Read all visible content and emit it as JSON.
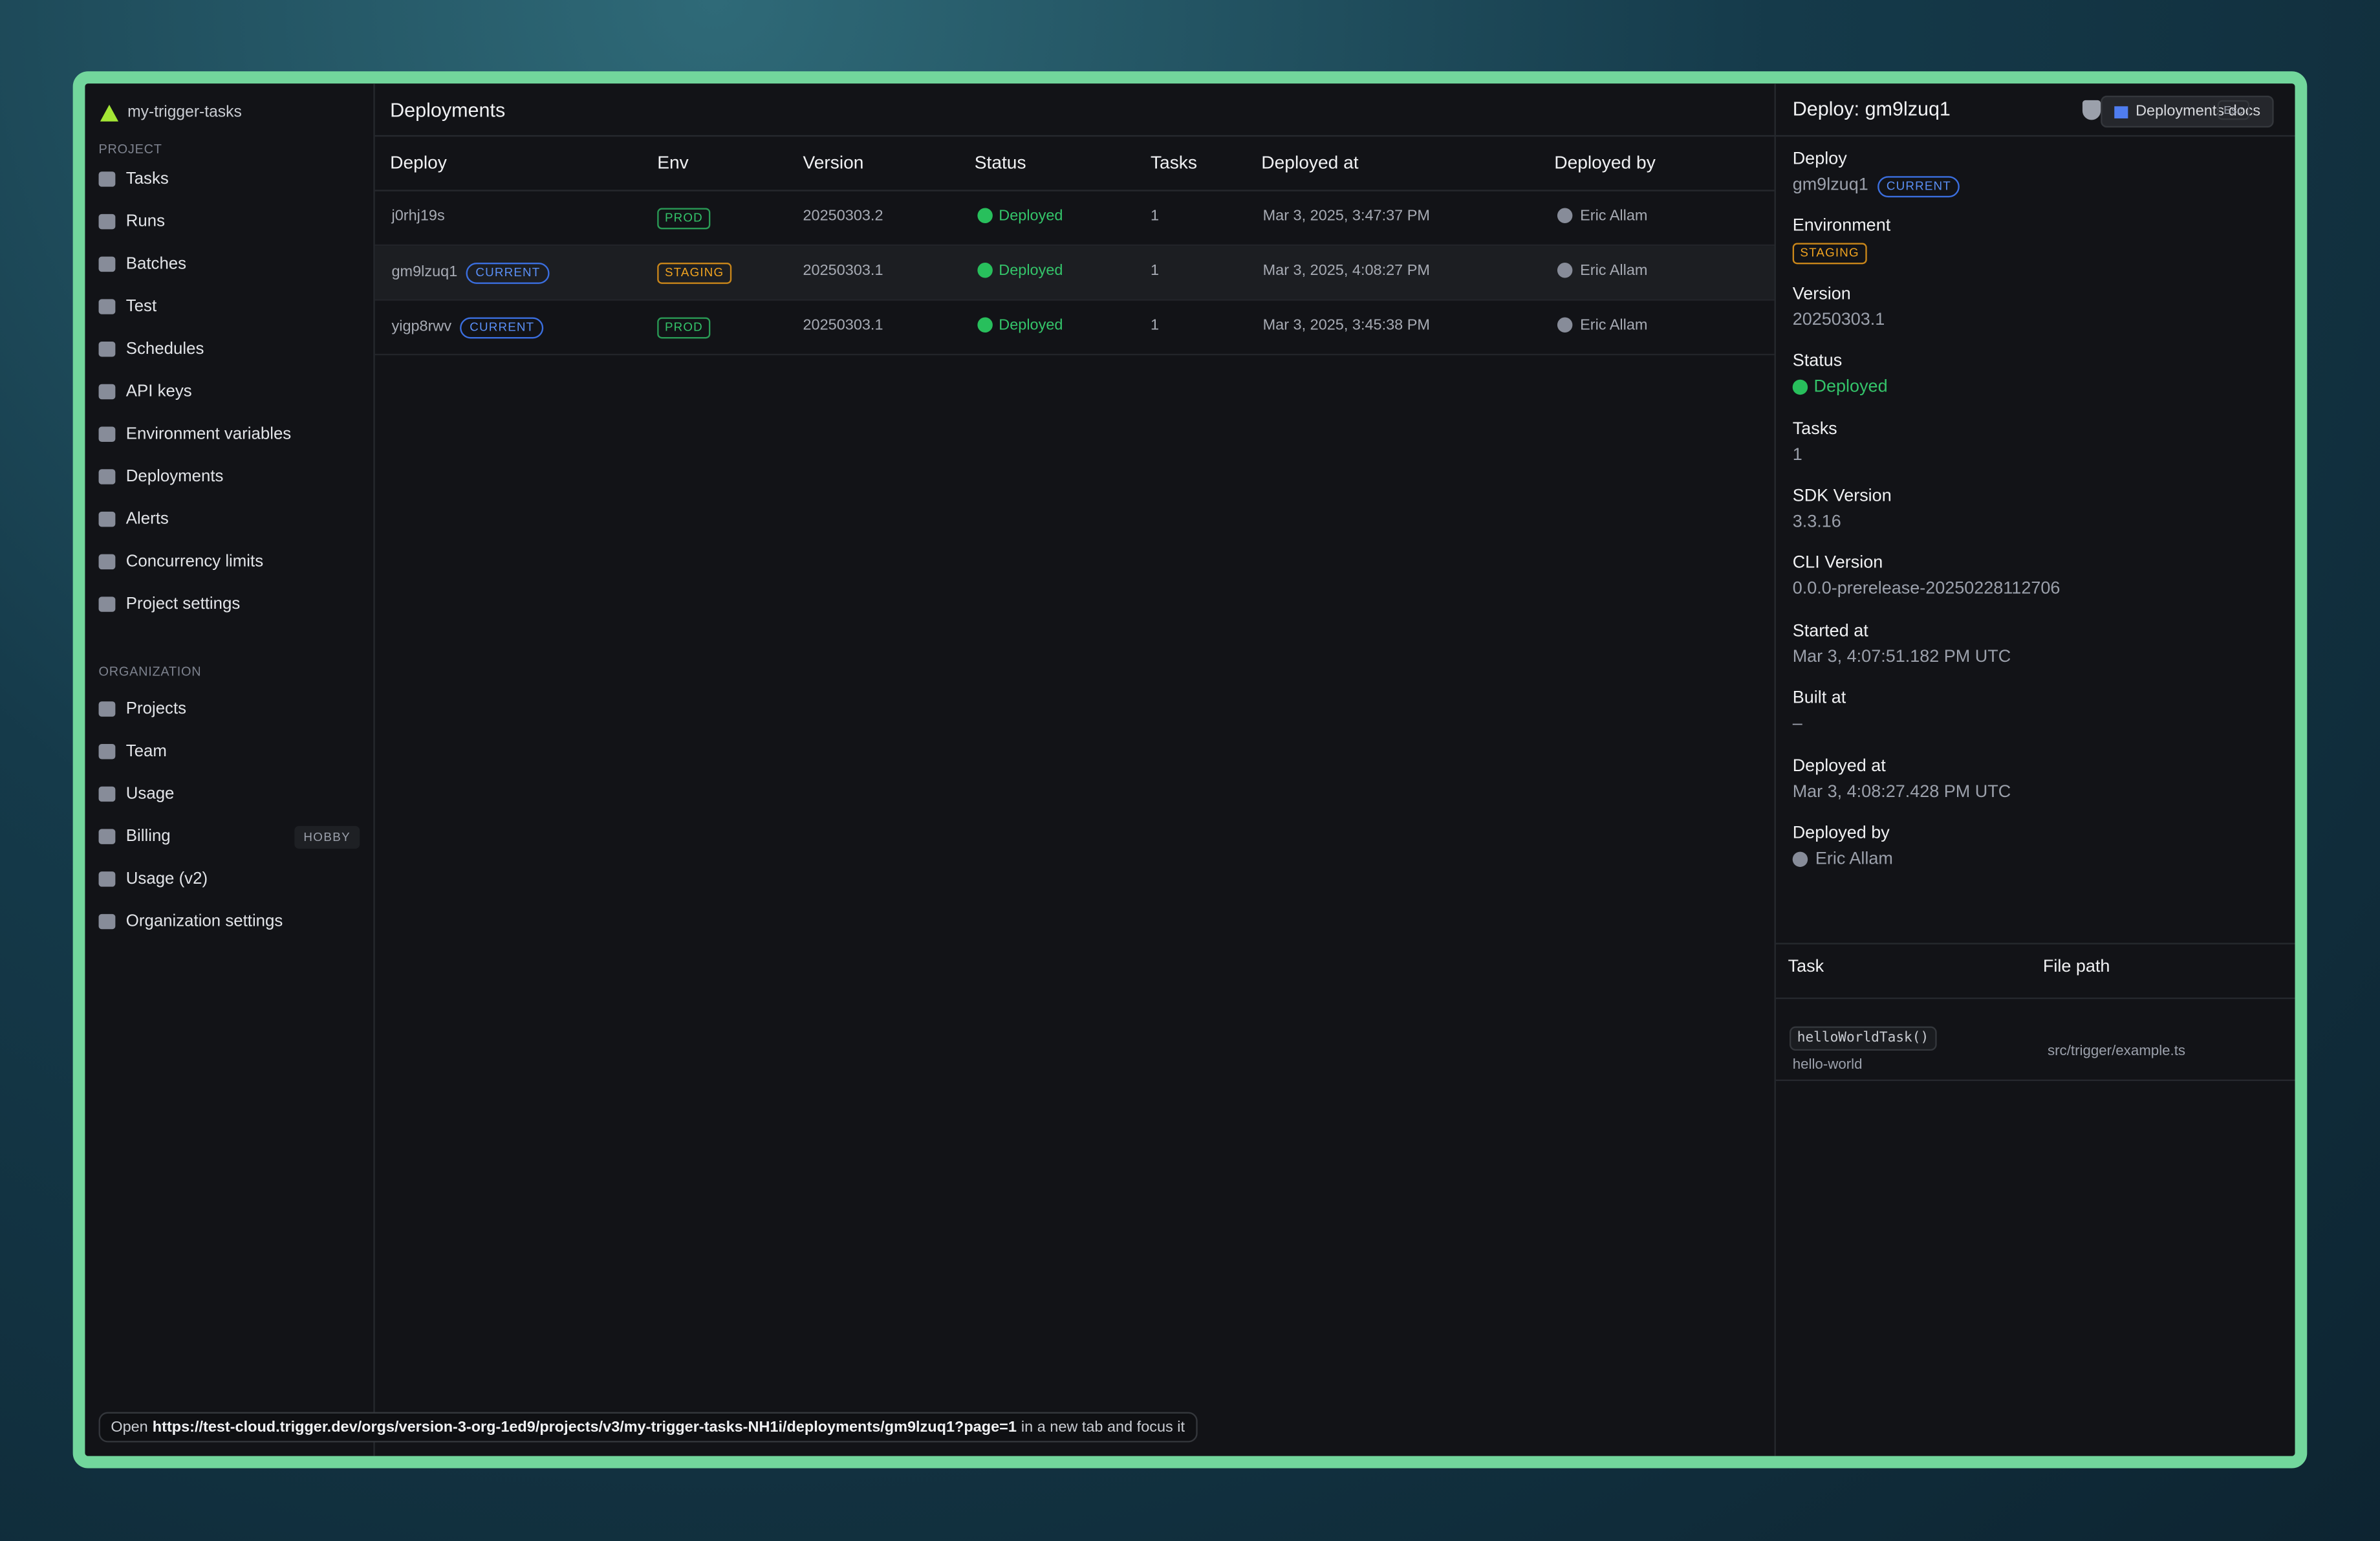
{
  "sidebar": {
    "project_name": "my-trigger-tasks",
    "project_section": "PROJECT",
    "project_items": [
      "Tasks",
      "Runs",
      "Batches",
      "Test",
      "Schedules",
      "API keys",
      "Environment variables",
      "Deployments",
      "Alerts",
      "Concurrency limits",
      "Project settings"
    ],
    "org_section": "ORGANIZATION",
    "org_items": [
      "Projects",
      "Team",
      "Usage",
      "Billing",
      "Usage (v2)",
      "Organization settings"
    ],
    "billing_badge": "HOBBY"
  },
  "header": {
    "title": "Deployments",
    "docs_button": "Deployments docs"
  },
  "table": {
    "columns": [
      "Deploy",
      "Env",
      "Version",
      "Status",
      "Tasks",
      "Deployed at",
      "Deployed by"
    ],
    "rows": [
      {
        "deploy": "j0rhj19s",
        "env": "PROD",
        "version": "20250303.2",
        "status": "Deployed",
        "tasks": 1,
        "deployed_at": "Mar 3, 2025, 3:47:37 PM",
        "deployed_by": "Eric Allam"
      },
      {
        "deploy": "gm9lzuq1",
        "badge": "CURRENT",
        "env": "STAGING",
        "version": "20250303.1",
        "status": "Deployed",
        "tasks": 1,
        "deployed_at": "Mar 3, 2025, 4:08:27 PM",
        "deployed_by": "Eric Allam"
      },
      {
        "deploy": "yigp8rwv",
        "badge": "CURRENT",
        "env": "PROD",
        "version": "20250303.1",
        "status": "Deployed",
        "tasks": 1,
        "deployed_at": "Mar 3, 2025, 3:45:38 PM",
        "deployed_by": "Eric Allam"
      }
    ]
  },
  "detail": {
    "title": "Deploy: gm9lzuq1",
    "esc": "Esc",
    "fields": [
      {
        "label": "Deploy",
        "value": "gm9lzuq1",
        "badge": "CURRENT"
      },
      {
        "label": "Environment",
        "badge": "STAGING"
      },
      {
        "label": "Version",
        "value": "20250303.1"
      },
      {
        "label": "Status",
        "value": "Deployed"
      },
      {
        "label": "Tasks",
        "value": 1
      },
      {
        "label": "SDK Version",
        "value": "3.3.16"
      },
      {
        "label": "CLI Version",
        "value": "0.0.0-prerelease-20250228112706"
      },
      {
        "label": "Started at",
        "value": "Mar 3, 4:07:51.182 PM UTC"
      },
      {
        "label": "Built at",
        "value": "–"
      },
      {
        "label": "Deployed at",
        "value": "Mar 3, 4:08:27.428 PM UTC"
      },
      {
        "label": "Deployed by",
        "value": "Eric Allam"
      }
    ],
    "tasks_table": {
      "columns": [
        "Task",
        "File path"
      ],
      "rows": [
        {
          "task": "helloWorldTask()",
          "id": "hello-world",
          "file": "src/trigger/example.ts"
        }
      ]
    }
  },
  "status_bar": {
    "prefix": "Open",
    "url": "https://test-cloud.trigger.dev/orgs/version-3-org-1ed9/projects/v3/my-trigger-tasks-NH1i/deployments/gm9lzuq1?page=1",
    "suffix": "in a new tab and focus it"
  }
}
